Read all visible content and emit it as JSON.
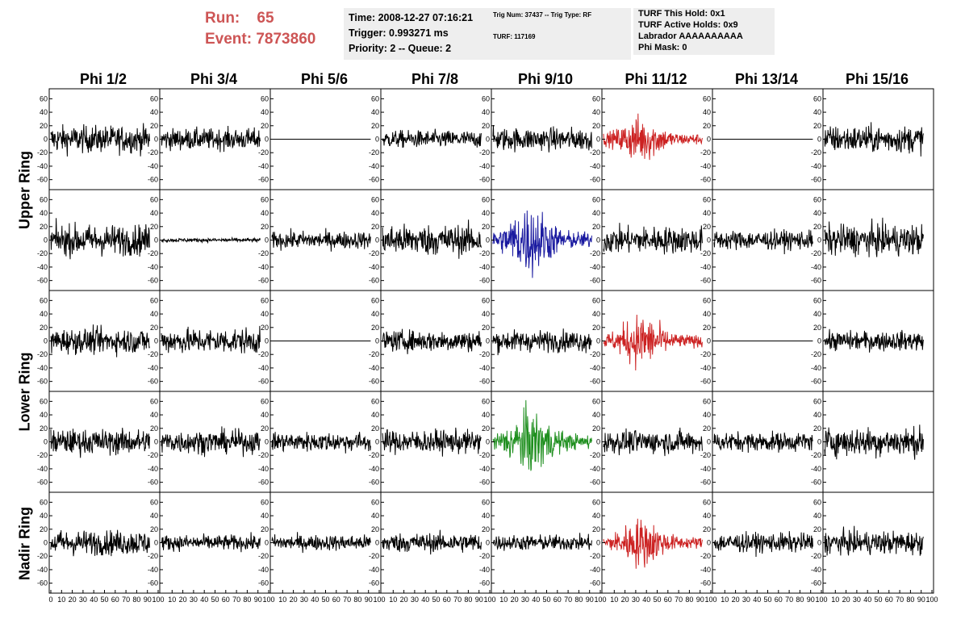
{
  "header": {
    "run_label": "Run:",
    "run_value": "65",
    "event_label": "Event:",
    "event_value": "7873860",
    "time": "Time: 2008-12-27 07:16:21",
    "trigger": "Trigger: 0.993271 ms",
    "priority": "Priority: 2 -- Queue: 2",
    "trig_num": "Trig Num: 37437 -- Trig Type: RF",
    "turf": "TURF: 117169",
    "turf_hold": "TURF This Hold: 0x1",
    "turf_active": "TURF Active Holds: 0x9",
    "labrador": "Labrador AAAAAAAAAA",
    "phi_mask": "Phi Mask: 0"
  },
  "columns": [
    "Phi 1/2",
    "Phi 3/4",
    "Phi 5/6",
    "Phi 7/8",
    "Phi 9/10",
    "Phi 11/12",
    "Phi 13/14",
    "Phi 15/16"
  ],
  "ring_labels": [
    "Upper Ring",
    "Lower Ring",
    "Nadir Ring"
  ],
  "chart_data": {
    "type": "line",
    "ylim": [
      -70,
      70
    ],
    "y_ticks": [
      -60,
      -40,
      -20,
      0,
      20,
      40,
      60
    ],
    "xlim": [
      0,
      100
    ],
    "x_ticks": [
      0,
      10,
      20,
      30,
      40,
      50,
      60,
      70,
      80,
      90,
      100
    ],
    "colors": {
      "default": "#000000",
      "red": "#cc2222",
      "blue": "#1a1aa0",
      "green": "#1f8f1f"
    },
    "panels": [
      {
        "row": 0,
        "col": 0,
        "amp": 14,
        "color": "default",
        "flat": false
      },
      {
        "row": 0,
        "col": 1,
        "amp": 11,
        "color": "default",
        "flat": false
      },
      {
        "row": 0,
        "col": 2,
        "amp": 0,
        "color": "default",
        "flat": true
      },
      {
        "row": 0,
        "col": 3,
        "amp": 9,
        "color": "default",
        "flat": false
      },
      {
        "row": 0,
        "col": 4,
        "amp": 12,
        "color": "default",
        "flat": false
      },
      {
        "row": 0,
        "col": 5,
        "amp": 16,
        "color": "red",
        "flat": false
      },
      {
        "row": 0,
        "col": 6,
        "amp": 0,
        "color": "default",
        "flat": true
      },
      {
        "row": 0,
        "col": 7,
        "amp": 14,
        "color": "default",
        "flat": false
      },
      {
        "row": 1,
        "col": 0,
        "amp": 16,
        "color": "default",
        "flat": false
      },
      {
        "row": 1,
        "col": 1,
        "amp": 2,
        "color": "default",
        "flat": false
      },
      {
        "row": 1,
        "col": 2,
        "amp": 9,
        "color": "default",
        "flat": false
      },
      {
        "row": 1,
        "col": 3,
        "amp": 16,
        "color": "default",
        "flat": false
      },
      {
        "row": 1,
        "col": 4,
        "amp": 24,
        "color": "blue",
        "flat": false
      },
      {
        "row": 1,
        "col": 5,
        "amp": 14,
        "color": "default",
        "flat": false
      },
      {
        "row": 1,
        "col": 6,
        "amp": 10,
        "color": "default",
        "flat": false
      },
      {
        "row": 1,
        "col": 7,
        "amp": 16,
        "color": "default",
        "flat": false
      },
      {
        "row": 2,
        "col": 0,
        "amp": 13,
        "color": "default",
        "flat": false
      },
      {
        "row": 2,
        "col": 1,
        "amp": 13,
        "color": "default",
        "flat": false
      },
      {
        "row": 2,
        "col": 2,
        "amp": 0,
        "color": "default",
        "flat": true
      },
      {
        "row": 2,
        "col": 3,
        "amp": 11,
        "color": "default",
        "flat": false
      },
      {
        "row": 2,
        "col": 4,
        "amp": 11,
        "color": "default",
        "flat": false
      },
      {
        "row": 2,
        "col": 5,
        "amp": 18,
        "color": "red",
        "flat": false
      },
      {
        "row": 2,
        "col": 6,
        "amp": 0,
        "color": "default",
        "flat": true
      },
      {
        "row": 2,
        "col": 7,
        "amp": 10,
        "color": "default",
        "flat": false
      },
      {
        "row": 3,
        "col": 0,
        "amp": 13,
        "color": "default",
        "flat": false
      },
      {
        "row": 3,
        "col": 1,
        "amp": 12,
        "color": "default",
        "flat": false
      },
      {
        "row": 3,
        "col": 2,
        "amp": 10,
        "color": "default",
        "flat": false
      },
      {
        "row": 3,
        "col": 3,
        "amp": 12,
        "color": "default",
        "flat": false
      },
      {
        "row": 3,
        "col": 4,
        "amp": 22,
        "color": "green",
        "flat": false
      },
      {
        "row": 3,
        "col": 5,
        "amp": 12,
        "color": "default",
        "flat": false
      },
      {
        "row": 3,
        "col": 6,
        "amp": 10,
        "color": "default",
        "flat": false
      },
      {
        "row": 3,
        "col": 7,
        "amp": 15,
        "color": "default",
        "flat": false
      },
      {
        "row": 4,
        "col": 0,
        "amp": 13,
        "color": "default",
        "flat": false
      },
      {
        "row": 4,
        "col": 1,
        "amp": 8,
        "color": "default",
        "flat": false
      },
      {
        "row": 4,
        "col": 2,
        "amp": 8,
        "color": "default",
        "flat": false
      },
      {
        "row": 4,
        "col": 3,
        "amp": 10,
        "color": "default",
        "flat": false
      },
      {
        "row": 4,
        "col": 4,
        "amp": 8,
        "color": "default",
        "flat": false
      },
      {
        "row": 4,
        "col": 5,
        "amp": 17,
        "color": "red",
        "flat": false
      },
      {
        "row": 4,
        "col": 6,
        "amp": 10,
        "color": "default",
        "flat": false
      },
      {
        "row": 4,
        "col": 7,
        "amp": 12,
        "color": "default",
        "flat": false
      }
    ]
  }
}
